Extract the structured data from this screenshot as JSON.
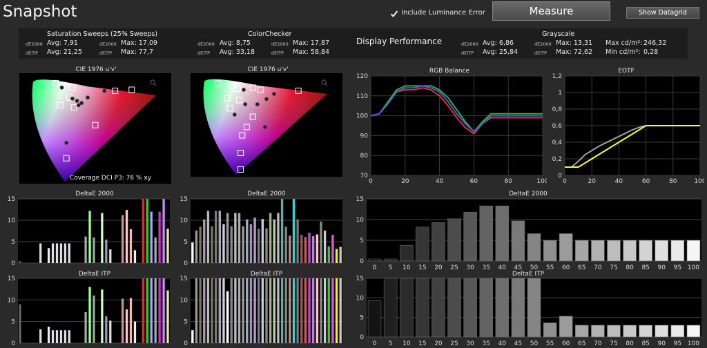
{
  "app_title": "Snapshot",
  "include_luminance_error": {
    "label": "Include Luminance Error",
    "checked": true
  },
  "buttons": {
    "measure": "Measure",
    "show_datagrid": "Show Datagrid"
  },
  "summary": {
    "saturation": {
      "title": "Saturation Sweeps (25% Sweeps)",
      "de2000_label": "dE2000",
      "deitp_label": "dEITP",
      "de2000_avg": "Avg: 7,91",
      "de2000_max": "Max: 17,09",
      "deitp_avg": "Avg: 21,25",
      "deitp_max": "Max: 77,7"
    },
    "colorchecker": {
      "title": "ColorChecker",
      "de2000_label": "dE2000",
      "deitp_label": "dEITP",
      "de2000_avg": "Avg: 8,75",
      "de2000_max": "Max: 17,87",
      "deitp_avg": "Avg: 33,18",
      "deitp_max": "Max: 58,84"
    },
    "display_performance": "Display Performance",
    "grayscale": {
      "title": "Grayscale",
      "de2000_label": "dE2000",
      "deitp_label": "dEITP",
      "de2000_avg": "Avg: 6,86",
      "de2000_max": "Max: 13,31",
      "deitp_avg": "Avg: 25,84",
      "deitp_max": "Max: 72,62",
      "max_cd_label": "Max cd/m²:",
      "max_cd": "246,32",
      "min_cd_label": "Min cd/m²:",
      "min_cd": "0,28"
    }
  },
  "cie_left": {
    "title": "CIE 1976 u'v'",
    "coverage": "Coverage DCI P3:  76 % xy",
    "zoom_icon": "magnifier-icon"
  },
  "cie_right": {
    "title": "CIE 1976 u'v'",
    "zoom_icon": "magnifier-icon"
  },
  "chart_data": [
    {
      "id": "rgb_balance",
      "type": "line",
      "title": "RGB Balance",
      "xlim": [
        0,
        100
      ],
      "ylim": [
        70,
        120
      ],
      "x_ticks": [
        "0",
        "20",
        "40",
        "60",
        "80",
        "100"
      ],
      "y_ticks": [
        "70",
        "80",
        "90",
        "100",
        "110",
        "120"
      ],
      "x": [
        0,
        5,
        10,
        15,
        20,
        25,
        30,
        35,
        40,
        45,
        50,
        55,
        60,
        65,
        70,
        75,
        80,
        85,
        90,
        95,
        100
      ],
      "series": [
        {
          "color": "#e53030",
          "values": [
            100,
            101,
            106,
            112,
            113,
            113,
            114,
            113,
            110,
            105,
            99,
            94,
            91,
            96,
            99,
            99,
            99,
            99,
            99,
            99,
            99
          ]
        },
        {
          "color": "#2fb52f",
          "values": [
            100,
            101,
            107,
            113,
            115,
            115,
            115,
            115,
            113,
            109,
            103,
            97,
            92,
            97,
            101,
            101,
            101,
            101,
            101,
            101,
            101
          ]
        },
        {
          "color": "#4a5ae0",
          "values": [
            100,
            101,
            106,
            112,
            114,
            114,
            115,
            114,
            112,
            107,
            101,
            96,
            92,
            96,
            100,
            100,
            100,
            100,
            100,
            100,
            100
          ]
        }
      ]
    },
    {
      "id": "eotf",
      "type": "line",
      "title": "EOTF",
      "xlim": [
        0,
        100
      ],
      "ylim": [
        0,
        1.2
      ],
      "x_ticks": [
        "0",
        "20",
        "40",
        "60",
        "80",
        "100"
      ],
      "y_ticks": [
        "0",
        "0,2",
        "0,4",
        "0,6",
        "0,8",
        "1",
        "1,2"
      ],
      "x": [
        0,
        5,
        10,
        15,
        20,
        25,
        30,
        35,
        40,
        45,
        50,
        55,
        60,
        65,
        70,
        75,
        80,
        85,
        90,
        95,
        100
      ],
      "series": [
        {
          "color": "#a0a0a0",
          "values": [
            0.1,
            0.1,
            0.17,
            0.25,
            0.3,
            0.35,
            0.39,
            0.43,
            0.47,
            0.51,
            0.55,
            0.58,
            0.6,
            0.6,
            0.6,
            0.6,
            0.6,
            0.6,
            0.6,
            0.6,
            0.6
          ]
        },
        {
          "color": "#ffff33",
          "values": [
            0.1,
            0.1,
            0.1,
            0.15,
            0.2,
            0.25,
            0.3,
            0.35,
            0.4,
            0.45,
            0.5,
            0.55,
            0.6,
            0.6,
            0.6,
            0.6,
            0.6,
            0.6,
            0.6,
            0.6,
            0.6
          ]
        }
      ]
    },
    {
      "id": "gray_de2000",
      "type": "bar",
      "title": "DeltaE 2000",
      "ylim": [
        0,
        15
      ],
      "y_ticks": [
        "0",
        "5",
        "10",
        "15"
      ],
      "categories": [
        "0",
        "5",
        "10",
        "15",
        "20",
        "25",
        "30",
        "35",
        "40",
        "45",
        "50",
        "55",
        "60",
        "65",
        "70",
        "75",
        "80",
        "85",
        "90",
        "95",
        "100"
      ],
      "values": [
        0.5,
        0.5,
        3.8,
        8.2,
        9.3,
        10.2,
        11.8,
        13.3,
        13.3,
        9.7,
        6.6,
        5.0,
        6.6,
        5.0,
        5.0,
        5.0,
        5.0,
        5.0,
        5.0,
        5.0,
        5.0
      ]
    },
    {
      "id": "gray_deitp",
      "type": "bar",
      "title": "DeltaE ITP",
      "ylim": [
        0,
        15
      ],
      "y_ticks": [
        "0",
        "5",
        "10",
        "15"
      ],
      "categories": [
        "0",
        "5",
        "10",
        "15",
        "20",
        "25",
        "30",
        "35",
        "40",
        "45",
        "50",
        "55",
        "60",
        "65",
        "70",
        "75",
        "80",
        "85",
        "90",
        "95",
        "100"
      ],
      "values": [
        9.3,
        15,
        15,
        15,
        15,
        15,
        15,
        15,
        15,
        15,
        15,
        3.6,
        5.3,
        3.0,
        3.0,
        3.0,
        3.0,
        3.0,
        3.0,
        3.0,
        3.0
      ]
    },
    {
      "id": "sat_de2000",
      "type": "bar",
      "title": "DeltaE 2000",
      "ylim": [
        0,
        15
      ],
      "y_ticks": [
        "0",
        "5",
        "10",
        "15"
      ],
      "values": [
        0.5,
        0,
        0,
        0,
        0,
        4.6,
        0,
        3.5,
        4.6,
        4.6,
        4.6,
        4.6,
        4.6,
        0,
        0,
        0,
        6.2,
        12.2,
        6,
        0,
        11.7,
        5.5,
        3.2,
        0,
        0,
        11.2,
        12.4,
        7.9,
        3,
        0,
        15,
        15,
        12,
        6,
        12,
        15,
        8
      ],
      "colors": [
        "#555",
        "#000",
        "#000",
        "#000",
        "#000",
        "#ddd",
        "#000",
        "#eee",
        "#dde",
        "#dde",
        "#dde",
        "#dde",
        "#dde",
        "#000",
        "#000",
        "#000",
        "#aaa",
        "#9f9",
        "#9a9",
        "#000",
        "#cfc",
        "#99b",
        "#ddd",
        "#000",
        "#000",
        "#b99",
        "#fcc",
        "#ebb",
        "#eee",
        "#000",
        "#c33",
        "#3c3",
        "#aaf",
        "#aaa",
        "#c3c",
        "#c8f",
        "#ee9"
      ]
    },
    {
      "id": "sat_deitp",
      "type": "bar",
      "title": "DeltaE ITP",
      "ylim": [
        0,
        15
      ],
      "y_ticks": [
        "0",
        "5",
        "10",
        "15"
      ],
      "values": [
        9,
        0,
        0,
        0,
        0,
        3.2,
        0,
        3.8,
        3,
        3,
        3,
        3,
        3,
        0,
        0,
        0,
        7.2,
        13,
        11,
        0,
        12.4,
        6.2,
        5.2,
        0,
        0,
        10.3,
        7.8,
        10.4,
        5,
        0,
        15,
        15,
        15,
        15,
        15,
        15,
        12.2
      ],
      "colors": [
        "#666",
        "#000",
        "#000",
        "#000",
        "#000",
        "#ddd",
        "#000",
        "#eee",
        "#dde",
        "#dde",
        "#dde",
        "#dde",
        "#dde",
        "#000",
        "#000",
        "#000",
        "#aaa",
        "#9f9",
        "#9a9",
        "#000",
        "#cfc",
        "#99b",
        "#ddd",
        "#000",
        "#000",
        "#b99",
        "#fcc",
        "#ebb",
        "#eee",
        "#000",
        "#c33",
        "#3c3",
        "#aaf",
        "#aaa",
        "#c3c",
        "#c8f",
        "#ee9"
      ]
    },
    {
      "id": "cc_de2000",
      "type": "bar",
      "title": "DeltaE 2000",
      "ylim": [
        0,
        15
      ],
      "y_ticks": [
        "0",
        "5",
        "10",
        "15"
      ],
      "values": [
        4.8,
        7.6,
        8.5,
        10.2,
        12.2,
        8.6,
        12.2,
        12.2,
        9.1,
        11.7,
        8.6,
        11.7,
        11.7,
        8.6,
        10.2,
        9.1,
        10.6,
        8,
        10.3,
        8.1,
        11.7,
        10.2,
        11.7,
        15,
        8.5,
        6.4,
        15,
        10.2,
        6.6,
        6.1,
        7.1,
        6.3,
        6.7,
        9.7,
        7.6,
        3.9,
        6.6,
        3.3,
        3.8
      ],
      "colors": [
        "#fff",
        "#998",
        "#776",
        "#a9a",
        "#bbb",
        "#776",
        "#877",
        "#aab",
        "#ccd",
        "#99a",
        "#888",
        "#bbb",
        "#aaa",
        "#99a",
        "#aab",
        "#99a",
        "#b9c",
        "#778",
        "#ccc",
        "#888",
        "#aa8",
        "#bca",
        "#bbb",
        "#6aa",
        "#887",
        "#b88",
        "#4cc",
        "#777",
        "#a55",
        "#d55",
        "#c4c",
        "#a8c",
        "#fcc",
        "#888",
        "#ccc",
        "#3c3",
        "#d5d",
        "#ee3",
        "#ccb"
      ]
    },
    {
      "id": "cc_deitp",
      "type": "bar",
      "title": "DeltaE ITP",
      "ylim": [
        0,
        15
      ],
      "y_ticks": [
        "0",
        "5",
        "10",
        "15"
      ],
      "values": [
        3,
        15,
        15,
        15,
        15,
        15,
        15,
        15,
        15,
        12,
        15,
        15,
        15,
        15,
        15,
        15,
        15,
        15,
        15,
        15,
        15,
        15,
        15,
        15,
        15,
        15,
        15,
        15,
        15,
        15,
        15,
        15,
        15,
        15,
        15,
        15,
        15,
        15,
        15
      ],
      "colors": [
        "#fff",
        "#998",
        "#776",
        "#a9a",
        "#bbb",
        "#776",
        "#877",
        "#aab",
        "#ccd",
        "#fff",
        "#888",
        "#bbb",
        "#aaa",
        "#99a",
        "#aab",
        "#99a",
        "#b9c",
        "#778",
        "#ccc",
        "#888",
        "#aa8",
        "#bca",
        "#bbb",
        "#6aa",
        "#887",
        "#b88",
        "#4cc",
        "#777",
        "#a55",
        "#d55",
        "#c4c",
        "#a8c",
        "#fcc",
        "#888",
        "#ccc",
        "#3c3",
        "#d5d",
        "#ee3",
        "#ccb"
      ]
    }
  ]
}
